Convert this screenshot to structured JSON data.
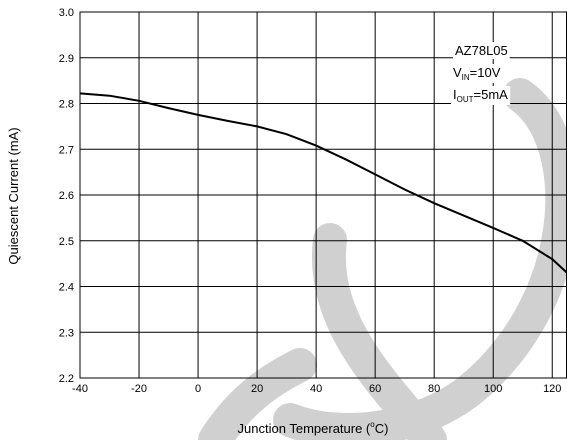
{
  "chart_data": {
    "type": "line",
    "title": "",
    "xlabel": "Junction Temperature (°C)",
    "xlabel_parts": {
      "prefix": "Junction Temperature (",
      "degree": "o",
      "unit": "C)"
    },
    "ylabel": "Quiescent Current (mA)",
    "xlim": [
      -40,
      125
    ],
    "ylim": [
      2.2,
      3.0
    ],
    "x_ticks": [
      -40,
      -20,
      0,
      20,
      40,
      60,
      80,
      100,
      120
    ],
    "x_tick_labels": [
      "-40",
      "-20",
      "0",
      "20",
      "40",
      "60",
      "80",
      "100",
      "120"
    ],
    "y_ticks": [
      2.2,
      2.3,
      2.4,
      2.5,
      2.6,
      2.7,
      2.8,
      2.9,
      3.0
    ],
    "y_tick_labels": [
      "2.2",
      "2.3",
      "2.4",
      "2.5",
      "2.6",
      "2.7",
      "2.8",
      "2.9",
      "3.0"
    ],
    "grid": true,
    "annotations": {
      "device": "AZ78L05",
      "vin": {
        "main": "V",
        "sub": "IN",
        "value": "=10V"
      },
      "iout": {
        "main": "I",
        "sub": "OUT",
        "value": "=5mA"
      }
    },
    "series": [
      {
        "color": "#000000",
        "x": [
          -40,
          -30,
          -20,
          -10,
          0,
          10,
          20,
          30,
          40,
          50,
          60,
          70,
          80,
          90,
          100,
          110,
          120,
          125
        ],
        "y": [
          2.822,
          2.817,
          2.806,
          2.79,
          2.775,
          2.762,
          2.75,
          2.733,
          2.708,
          2.678,
          2.645,
          2.612,
          2.582,
          2.555,
          2.528,
          2.5,
          2.46,
          2.43
        ]
      }
    ]
  }
}
